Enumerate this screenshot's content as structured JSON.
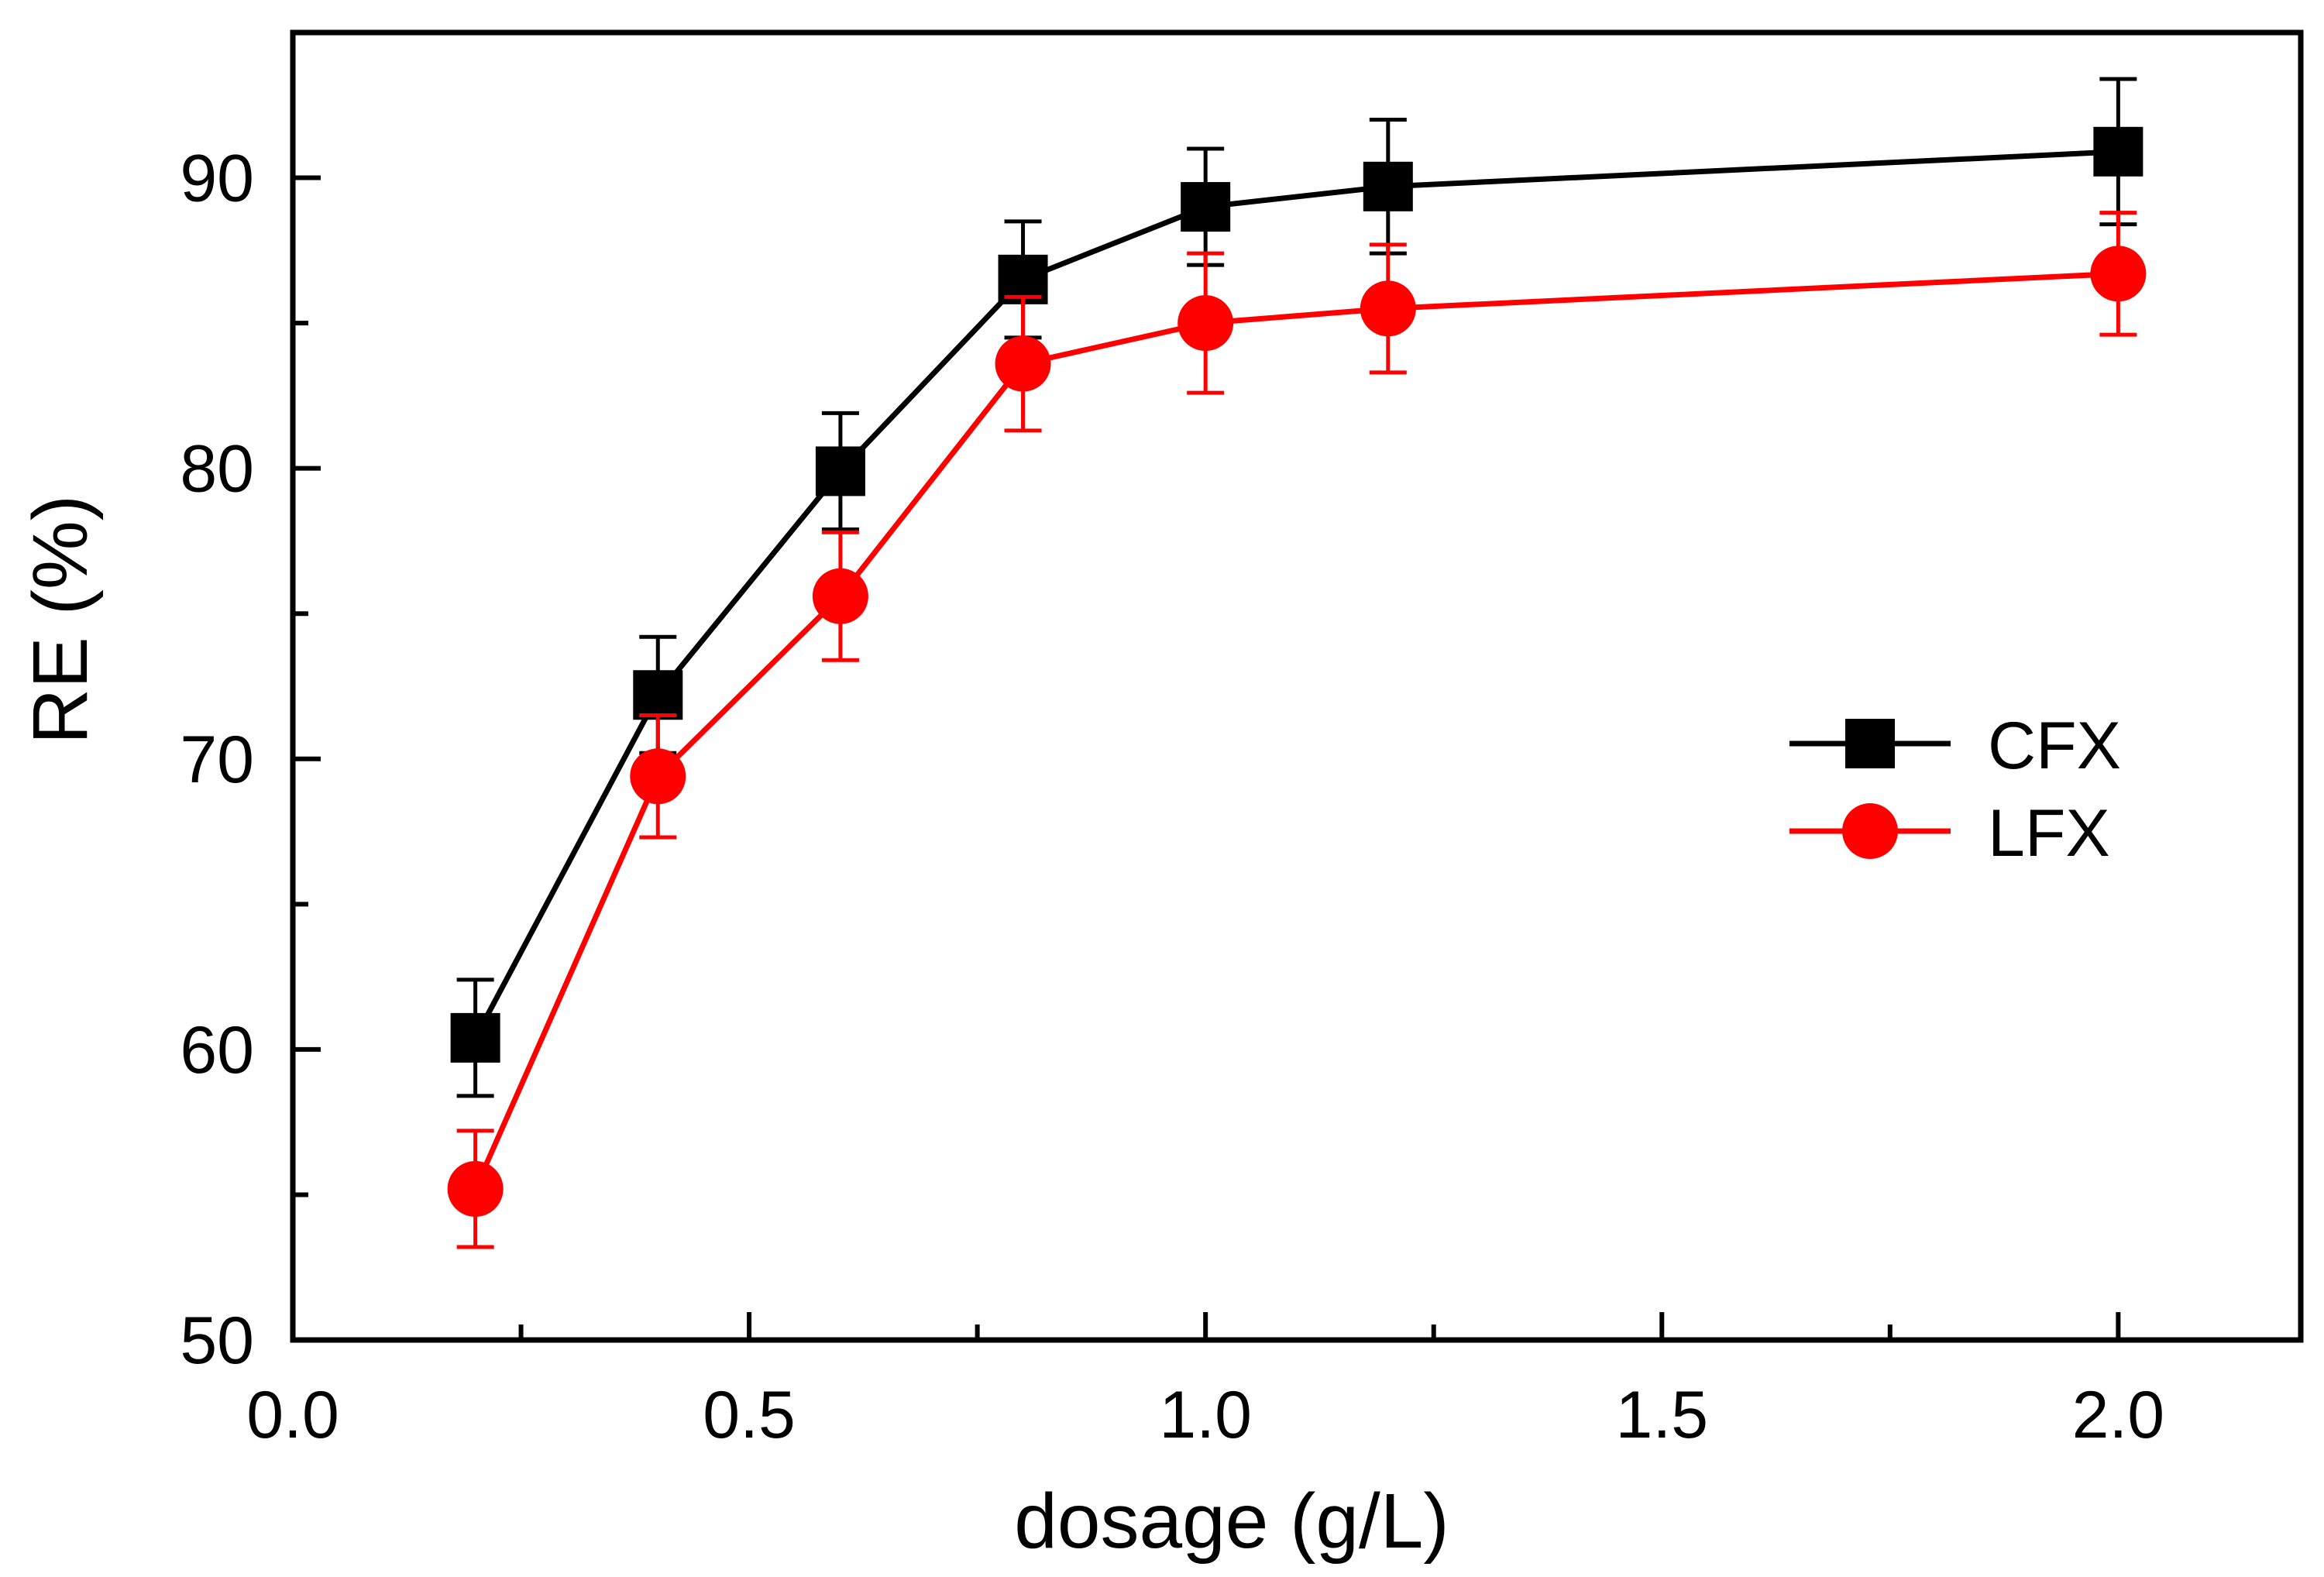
{
  "chart_data": {
    "type": "line",
    "title": "",
    "xlabel": "dosage (g/L)",
    "ylabel": "RE (%)",
    "xlim": [
      0.0,
      2.2
    ],
    "ylim": [
      50,
      95
    ],
    "x_ticks": [
      0.0,
      0.5,
      1.0,
      1.5,
      2.0
    ],
    "x_tick_labels": [
      "0.0",
      "0.5",
      "1.0",
      "1.5",
      "2.0"
    ],
    "y_ticks": [
      50,
      60,
      70,
      80,
      90
    ],
    "y_tick_labels": [
      "50",
      "60",
      "70",
      "80",
      "90"
    ],
    "grid": false,
    "legend_position": "right",
    "series": [
      {
        "name": "CFX",
        "color": "#000000",
        "marker": "square",
        "x": [
          0.2,
          0.4,
          0.6,
          0.8,
          1.0,
          1.2,
          2.0
        ],
        "values": [
          60.4,
          72.2,
          79.9,
          86.5,
          89.0,
          89.7,
          90.9
        ],
        "error": [
          2.0,
          2.0,
          2.0,
          2.0,
          2.0,
          2.3,
          2.5
        ]
      },
      {
        "name": "LFX",
        "color": "#ff0000",
        "marker": "circle",
        "x": [
          0.2,
          0.4,
          0.6,
          0.8,
          1.0,
          1.2,
          2.0
        ],
        "values": [
          55.2,
          69.4,
          75.6,
          83.6,
          85.0,
          85.5,
          86.7
        ],
        "error": [
          2.0,
          2.1,
          2.2,
          2.3,
          2.4,
          2.2,
          2.1
        ]
      }
    ]
  }
}
